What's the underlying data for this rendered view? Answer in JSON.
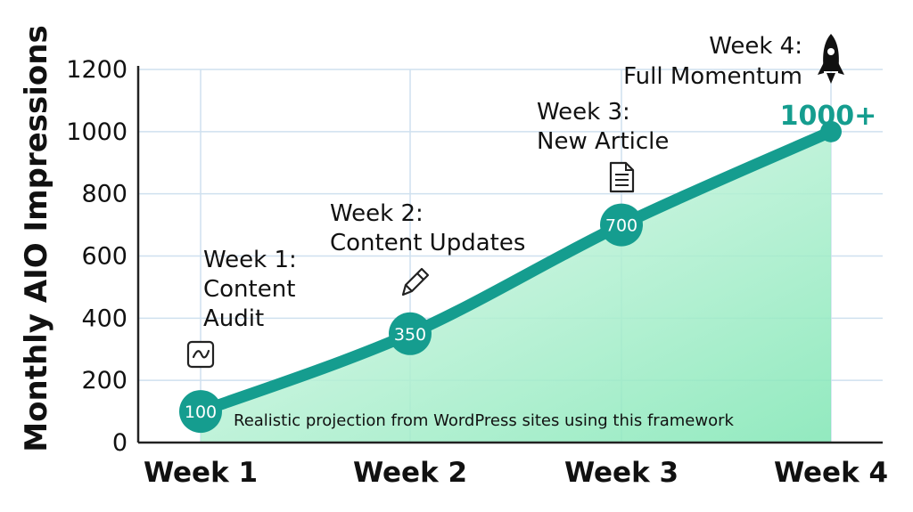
{
  "chart_data": {
    "type": "area",
    "title": "",
    "xlabel": "",
    "ylabel": "Monthly AIO Impressions",
    "categories": [
      "Week 1",
      "Week 2",
      "Week 3",
      "Week 4"
    ],
    "series": [
      {
        "values": [
          100,
          350,
          700,
          1000
        ]
      }
    ],
    "data_labels": [
      "100",
      "350",
      "700",
      "1000+"
    ],
    "ylim": [
      0,
      1200
    ],
    "yticks": [
      0,
      200,
      400,
      600,
      800,
      1000,
      1200
    ],
    "grid": true,
    "annotations": [
      {
        "lines": [
          "Week 1:",
          "Content",
          "Audit"
        ],
        "icon": "chart-trend-icon"
      },
      {
        "lines": [
          "Week 2:",
          "Content Updates"
        ],
        "icon": "pencil-icon"
      },
      {
        "lines": [
          "Week 3:",
          "New Article"
        ],
        "icon": "document-icon"
      },
      {
        "lines": [
          "Week 4:",
          "Full Momentum"
        ],
        "icon": "rocket-icon"
      }
    ],
    "note": "Realistic projection from WordPress sites using this framework",
    "colors": {
      "line": "#159d8f",
      "fill_top": "#7fe6b4",
      "fill_bottom": "#e9fbf1",
      "grid": "#cfe0ef"
    }
  }
}
